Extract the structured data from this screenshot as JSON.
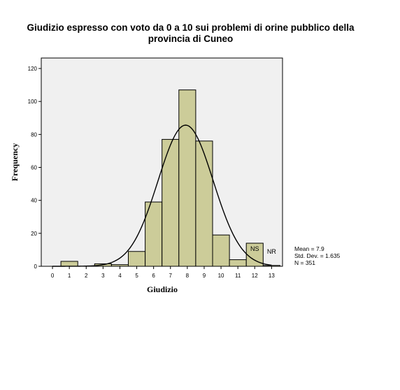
{
  "chart_data": {
    "type": "bar",
    "title_line1": "Giudizio espresso con voto da 0 a 10 sui problemi di orine pubblico della",
    "title_line2": "provincia di Cuneo",
    "xlabel": "Giudizio",
    "ylabel": "Frequency",
    "categories": [
      "0",
      "1",
      "2",
      "3",
      "4",
      "5",
      "6",
      "7",
      "8",
      "9",
      "10",
      "11",
      "12",
      "13"
    ],
    "values": [
      0,
      3,
      0,
      1.5,
      1,
      9,
      39,
      77,
      107,
      76,
      19,
      4,
      14,
      0.5
    ],
    "bar_labels": {
      "12": "NS",
      "13": "NR"
    },
    "ylim": [
      0,
      120
    ],
    "yticks": [
      0,
      20,
      40,
      60,
      80,
      100,
      120
    ],
    "normal_curve": {
      "mean": 7.9,
      "std": 1.635,
      "n": 351
    },
    "grid": false,
    "stats": {
      "mean": "Mean = 7.9",
      "std": "Std. Dev. = 1.635",
      "n": "N = 351"
    },
    "colors": {
      "bar_fill": "#cccc99",
      "plot_bg": "#f0f0f0",
      "curve": "#000000"
    }
  }
}
